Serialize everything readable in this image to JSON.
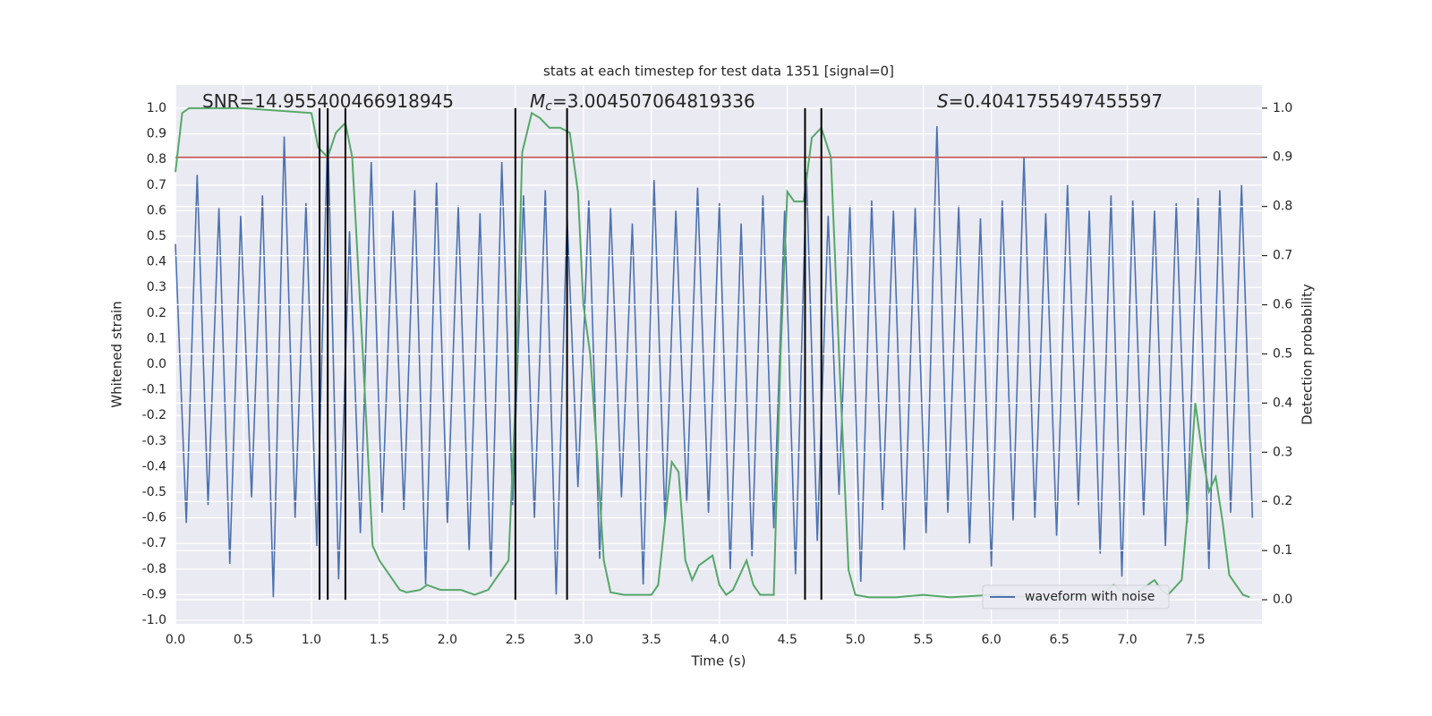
{
  "chart_data": {
    "type": "line",
    "title": "stats at each timestep for test data 1351 [signal=0]",
    "xlabel": "Time (s)",
    "ylabel": "Whitened strain",
    "y2label": "Detection probability",
    "xlim": [
      0,
      7.99
    ],
    "ylim": [
      -1.014,
      1.091
    ],
    "y2lim": [
      -0.049,
      1.047
    ],
    "xticks": [
      {
        "value": 0,
        "label": "0.0"
      },
      0.5,
      {
        "value": 1,
        "label": "1.0"
      },
      1.5,
      {
        "value": 2,
        "label": "2.0"
      },
      2.5,
      {
        "value": 3,
        "label": "3.0"
      },
      3.5,
      {
        "value": 4,
        "label": "4.0"
      },
      4.5,
      {
        "value": 5,
        "label": "5.0"
      },
      5.5,
      {
        "value": 6,
        "label": "6.0"
      },
      6.5,
      {
        "value": 7,
        "label": "7.0"
      },
      7.5
    ],
    "yticks": [
      {
        "value": -1,
        "label": "-1.0"
      },
      -0.9,
      -0.8,
      -0.7,
      -0.6,
      -0.5,
      -0.4,
      -0.3,
      -0.2,
      -0.1,
      {
        "value": 0,
        "label": "0.0"
      },
      0.1,
      0.2,
      0.3,
      0.4,
      0.5,
      0.6,
      0.7,
      0.8,
      0.9,
      {
        "value": 1,
        "label": "1.0"
      }
    ],
    "y2ticks": [
      {
        "value": 0,
        "label": "0.0"
      },
      0.1,
      0.2,
      0.3,
      0.4,
      0.5,
      0.6,
      0.7,
      0.8,
      0.9,
      {
        "value": 1,
        "label": "1.0"
      }
    ],
    "grid": true,
    "legend": "lower right",
    "series": [
      {
        "name": "waveform with noise",
        "color": "#4c72b0",
        "axis": "y",
        "x": [
          0,
          0.08,
          0.16,
          0.24,
          0.32,
          0.4,
          0.48,
          0.56,
          0.64,
          0.72,
          0.8,
          0.88,
          0.96,
          1.04,
          1.12,
          1.2,
          1.28,
          1.36,
          1.44,
          1.52,
          1.6,
          1.68,
          1.76,
          1.84,
          1.92,
          2,
          2.08,
          2.16,
          2.24,
          2.32,
          2.4,
          2.48,
          2.56,
          2.64,
          2.72,
          2.8,
          2.88,
          2.96,
          3.04,
          3.12,
          3.2,
          3.28,
          3.36,
          3.44,
          3.52,
          3.6,
          3.68,
          3.76,
          3.84,
          3.92,
          4,
          4.08,
          4.16,
          4.24,
          4.32,
          4.4,
          4.48,
          4.56,
          4.64,
          4.72,
          4.8,
          4.88,
          4.96,
          5.04,
          5.12,
          5.2,
          5.28,
          5.36,
          5.44,
          5.52,
          5.6,
          5.68,
          5.76,
          5.84,
          5.92,
          6,
          6.08,
          6.16,
          6.24,
          6.32,
          6.4,
          6.48,
          6.56,
          6.64,
          6.72,
          6.8,
          6.88,
          6.96,
          7.04,
          7.12,
          7.2,
          7.28,
          7.36,
          7.44,
          7.52,
          7.6,
          7.68,
          7.76,
          7.84,
          7.92
        ],
        "values": [
          0.47,
          -0.62,
          0.74,
          -0.55,
          0.61,
          -0.78,
          0.58,
          -0.52,
          0.66,
          -0.91,
          0.89,
          -0.6,
          0.63,
          -0.71,
          0.92,
          -0.84,
          0.52,
          -0.66,
          0.79,
          -0.58,
          0.6,
          -0.57,
          0.68,
          -0.86,
          0.71,
          -0.62,
          0.62,
          -0.73,
          0.59,
          -0.83,
          0.79,
          -0.55,
          0.66,
          -0.6,
          0.68,
          -0.9,
          0.58,
          -0.48,
          0.64,
          -0.76,
          0.61,
          -0.52,
          0.55,
          -0.86,
          0.72,
          -0.61,
          0.6,
          -0.54,
          0.69,
          -0.58,
          0.63,
          -0.8,
          0.55,
          -0.75,
          0.66,
          -0.64,
          0.6,
          -0.82,
          0.75,
          -0.69,
          0.58,
          -0.51,
          0.62,
          -0.85,
          0.64,
          -0.57,
          0.6,
          -0.73,
          0.61,
          -0.66,
          0.93,
          -0.58,
          0.62,
          -0.7,
          0.57,
          -0.79,
          0.64,
          -0.61,
          0.81,
          -0.6,
          0.59,
          -0.67,
          0.7,
          -0.55,
          0.6,
          -0.74,
          0.66,
          -0.83,
          0.64,
          -0.59,
          0.6,
          -0.71,
          0.63,
          -0.62,
          0.65,
          -0.8,
          0.68,
          -0.58,
          0.7,
          -0.6
        ]
      },
      {
        "color": "#55a868",
        "axis": "y2",
        "x": [
          0,
          0.05,
          0.1,
          0.5,
          1,
          1.05,
          1.12,
          1.18,
          1.25,
          1.3,
          1.38,
          1.45,
          1.5,
          1.6,
          1.65,
          1.7,
          1.8,
          1.85,
          1.95,
          2.1,
          2.2,
          2.3,
          2.35,
          2.45,
          2.5,
          2.55,
          2.62,
          2.68,
          2.75,
          2.83,
          2.9,
          2.96,
          3,
          3.05,
          3.1,
          3.15,
          3.2,
          3.3,
          3.4,
          3.5,
          3.55,
          3.6,
          3.65,
          3.7,
          3.75,
          3.8,
          3.85,
          3.95,
          4,
          4.05,
          4.1,
          4.2,
          4.25,
          4.3,
          4.4,
          4.45,
          4.5,
          4.55,
          4.62,
          4.68,
          4.75,
          4.82,
          4.88,
          4.95,
          5,
          5.1,
          5.3,
          5.5,
          5.7,
          6,
          6.3,
          6.6,
          6.8,
          6.9,
          7,
          7.05,
          7.1,
          7.2,
          7.25,
          7.3,
          7.4,
          7.45,
          7.5,
          7.55,
          7.6,
          7.65,
          7.7,
          7.75,
          7.85,
          7.9
        ],
        "values": [
          0.87,
          0.99,
          1,
          1,
          0.99,
          0.92,
          0.9,
          0.95,
          0.97,
          0.9,
          0.49,
          0.11,
          0.08,
          0.04,
          0.02,
          0.015,
          0.02,
          0.03,
          0.02,
          0.02,
          0.01,
          0.02,
          0.04,
          0.08,
          0.4,
          0.91,
          0.99,
          0.98,
          0.96,
          0.96,
          0.95,
          0.83,
          0.6,
          0.5,
          0.3,
          0.08,
          0.015,
          0.01,
          0.01,
          0.01,
          0.03,
          0.16,
          0.28,
          0.26,
          0.08,
          0.04,
          0.07,
          0.09,
          0.03,
          0.01,
          0.02,
          0.08,
          0.03,
          0.01,
          0.01,
          0.5,
          0.83,
          0.81,
          0.81,
          0.94,
          0.96,
          0.9,
          0.5,
          0.06,
          0.01,
          0.005,
          0.005,
          0.01,
          0.005,
          0.01,
          0.005,
          0.005,
          0.01,
          0.03,
          0.01,
          0.01,
          0.02,
          0.04,
          0.02,
          0.01,
          0.04,
          0.2,
          0.4,
          0.3,
          0.22,
          0.25,
          0.16,
          0.05,
          0.01,
          0.005
        ]
      }
    ],
    "hlines": [
      {
        "value": 0.9,
        "axis": "y2",
        "color": "#c44e52"
      }
    ],
    "vlines": {
      "x": [
        1.06,
        1.12,
        1.25,
        2.5,
        2.88,
        4.63,
        4.75
      ],
      "ymin": 0,
      "ymax": 1,
      "axis": "y2",
      "color": "#000000"
    },
    "annotations": [
      {
        "text": "SNR=14.955400466918945"
      },
      {
        "symbol": "M",
        "subscript": "c",
        "text": "=3.004507064819336"
      },
      {
        "symbol": "S",
        "text": "=0.4041755497455597"
      }
    ]
  }
}
